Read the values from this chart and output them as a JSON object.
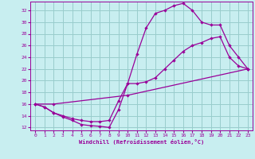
{
  "xlabel": "Windchill (Refroidissement éolien,°C)",
  "bg_color": "#c8eef0",
  "line_color": "#990099",
  "grid_color": "#99cccc",
  "xlim": [
    -0.5,
    23.5
  ],
  "ylim": [
    11.5,
    33.5
  ],
  "yticks": [
    12,
    14,
    16,
    18,
    20,
    22,
    24,
    26,
    28,
    30,
    32
  ],
  "xticks": [
    0,
    1,
    2,
    3,
    4,
    5,
    6,
    7,
    8,
    9,
    10,
    11,
    12,
    13,
    14,
    15,
    16,
    17,
    18,
    19,
    20,
    21,
    22,
    23
  ],
  "curve1_x": [
    0,
    1,
    2,
    3,
    4,
    5,
    6,
    7,
    8,
    9,
    10,
    11,
    12,
    13,
    14,
    15,
    16,
    17,
    18,
    19,
    20,
    21,
    22,
    23
  ],
  "curve1_y": [
    16.0,
    15.5,
    14.5,
    13.8,
    13.2,
    12.5,
    12.3,
    12.2,
    12.0,
    15.0,
    19.5,
    24.5,
    29.0,
    31.5,
    32.0,
    32.8,
    33.2,
    32.0,
    30.0,
    29.5,
    29.5,
    26.0,
    24.0,
    22.0
  ],
  "curve2_x": [
    0,
    1,
    2,
    3,
    4,
    5,
    6,
    7,
    8,
    9,
    10,
    11,
    12,
    13,
    14,
    15,
    16,
    17,
    18,
    19,
    20,
    21,
    22,
    23
  ],
  "curve2_y": [
    16.0,
    15.5,
    14.5,
    14.0,
    13.5,
    13.2,
    13.0,
    13.0,
    13.2,
    16.5,
    19.5,
    19.5,
    19.8,
    20.5,
    22.0,
    23.5,
    25.0,
    26.0,
    26.5,
    27.2,
    27.5,
    24.0,
    22.5,
    22.0
  ],
  "curve3_x": [
    0,
    2,
    10,
    23
  ],
  "curve3_y": [
    16.0,
    16.0,
    17.5,
    22.0
  ]
}
